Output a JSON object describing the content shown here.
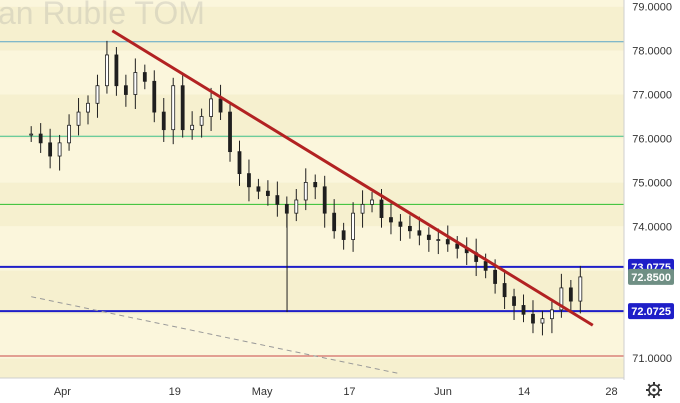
{
  "watermark": "an Ruble TOM",
  "colors": {
    "background_band_a": "#f6f0cf",
    "background_band_b": "#fbf6dc",
    "candle": "#1f1f1f",
    "trendline": "#b22222",
    "support_line": "#1e1ec8",
    "label_bg": "#1e1ec8",
    "price_label_bg": "#6f8f84",
    "axis_text": "#333333"
  },
  "chart_data": {
    "type": "candlestick",
    "x_tick_labels": [
      "Apr",
      "19",
      "May",
      "17",
      "Jun",
      "14",
      "28"
    ],
    "y_tick_labels": [
      "79.0000",
      "78.0000",
      "77.0000",
      "76.0000",
      "75.0000",
      "74.0000",
      "72.0000",
      "71.0000"
    ],
    "ylim": [
      70.55,
      79.15
    ],
    "horizontal_lines": [
      {
        "value": 78.2,
        "color": "#5aa6c8"
      },
      {
        "value": 76.05,
        "color": "#3fbf8c"
      },
      {
        "value": 74.5,
        "color": "#2fbf2f"
      },
      {
        "value": 73.0775,
        "color": "#1e1ec8",
        "label": "73.0775"
      },
      {
        "value": 72.0725,
        "color": "#1e1ec8",
        "label": "72.0725"
      },
      {
        "value": 71.05,
        "color": "#c84848"
      }
    ],
    "current_price": {
      "value": 72.85,
      "label": "72.8500"
    },
    "trendline": {
      "from": {
        "date": "2021-04-09",
        "price": 78.45
      },
      "to": {
        "date": "2021-06-25",
        "price": 71.75
      }
    },
    "dashed_line": {
      "from": {
        "date": "2021-03-27",
        "price": 72.4
      },
      "to": {
        "date": "2021-05-25",
        "price": 70.65
      }
    },
    "close_series": [
      76.1,
      75.9,
      75.6,
      75.9,
      76.3,
      76.6,
      76.8,
      77.2,
      77.9,
      77.2,
      77.0,
      77.5,
      77.3,
      76.6,
      76.2,
      77.2,
      76.2,
      76.3,
      76.5,
      76.9,
      76.6,
      75.7,
      75.2,
      74.9,
      74.8,
      74.7,
      74.5,
      74.3,
      74.6,
      75.0,
      74.9,
      74.3,
      73.9,
      73.7,
      74.3,
      74.5,
      74.6,
      74.2,
      74.1,
      74.0,
      73.9,
      73.8,
      73.7,
      73.7,
      73.6,
      73.5,
      73.4,
      73.2,
      73.0,
      72.7,
      72.4,
      72.2,
      72.0,
      71.8,
      71.9,
      72.1,
      72.6,
      72.3,
      72.85
    ],
    "series_dates": {
      "start": "2021-03-27",
      "end": "2021-06-23"
    }
  }
}
